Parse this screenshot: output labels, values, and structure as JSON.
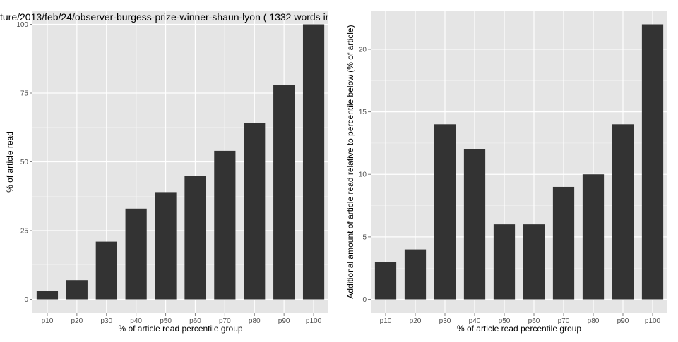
{
  "chart_data": [
    {
      "type": "bar",
      "title": "ture/2013/feb/24/observer-burgess-prize-winner-shaun-lyon ( 1332 words ir",
      "xlabel": "% of article read percentile group",
      "ylabel": "% of article read",
      "categories": [
        "p10",
        "p20",
        "p30",
        "p40",
        "p50",
        "p60",
        "p70",
        "p80",
        "p90",
        "p100"
      ],
      "values": [
        3,
        7,
        21,
        33,
        39,
        45,
        54,
        64,
        78,
        100
      ],
      "ylim": [
        -5,
        105
      ],
      "yticks": [
        0,
        25,
        50,
        75,
        100
      ],
      "grid": true,
      "bar_color": "#333333",
      "panel_color": "#e5e5e5",
      "grid_color": "#ffffff"
    },
    {
      "type": "bar",
      "title": "",
      "xlabel": "% of article read percentile group",
      "ylabel": "Additional amount of article read relative to percentile below (% of article)",
      "categories": [
        "p10",
        "p20",
        "p30",
        "p40",
        "p50",
        "p60",
        "p70",
        "p80",
        "p90",
        "p100"
      ],
      "values": [
        3,
        4,
        14,
        12,
        6,
        6,
        9,
        10,
        14,
        22
      ],
      "ylim": [
        -1.1,
        23.1
      ],
      "yticks": [
        0,
        5,
        10,
        15,
        20
      ],
      "grid": true,
      "bar_color": "#333333",
      "panel_color": "#e5e5e5",
      "grid_color": "#ffffff"
    }
  ]
}
